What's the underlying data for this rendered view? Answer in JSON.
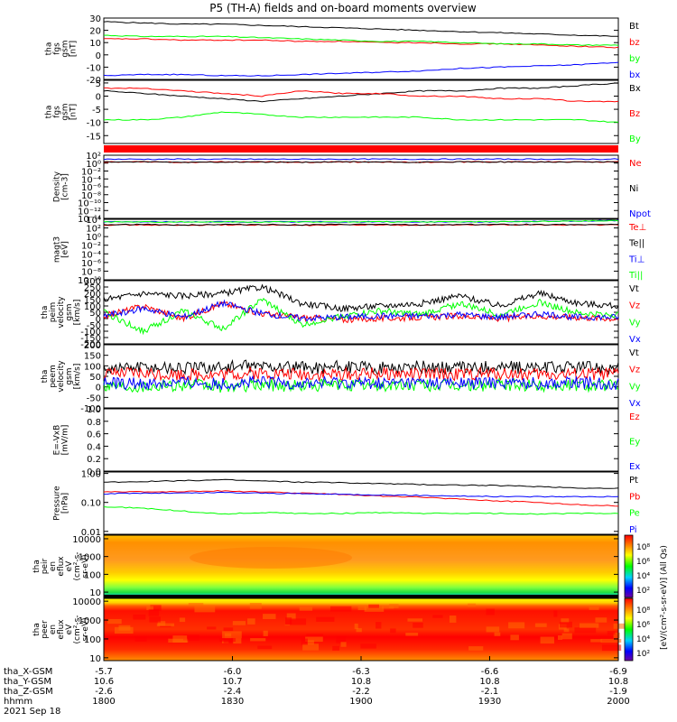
{
  "title": "P5 (TH-A) fields and on-board moments overview",
  "colors": {
    "black": "#000000",
    "red": "#ff0000",
    "green": "#00ff00",
    "blue": "#0000ff"
  },
  "chart_data": {
    "type": "line",
    "x_range": [
      "1800",
      "2000"
    ],
    "panels": [
      {
        "ylabel": [
          "tha",
          "fgs",
          "gsm",
          "[nT]"
        ],
        "ylim": [
          -20,
          30
        ],
        "ticks": [
          "30",
          "20",
          "10",
          "0",
          "-10",
          "-20"
        ],
        "tick_values": [
          30,
          20,
          10,
          0,
          -10,
          -20
        ],
        "legend": [
          {
            "label": "Bt",
            "color": "#000000"
          },
          {
            "label": "bz",
            "color": "#ff0000"
          },
          {
            "label": "by",
            "color": "#00ff00"
          },
          {
            "label": "bx",
            "color": "#0000ff"
          }
        ],
        "series": [
          {
            "color": "#000000",
            "values": [
              27,
              26,
              25,
              25,
              24,
              23,
              22,
              21,
              20,
              19,
              18,
              17,
              16,
              15
            ]
          },
          {
            "color": "#ff0000",
            "values": [
              13,
              13,
              12,
              12,
              12,
              11,
              11,
              10,
              10,
              9,
              9,
              8,
              7,
              6
            ]
          },
          {
            "color": "#00ff00",
            "values": [
              16,
              15,
              15,
              15,
              14,
              13,
              12,
              11,
              11,
              10,
              9,
              9,
              8,
              8
            ]
          },
          {
            "color": "#0000ff",
            "values": [
              -17,
              -16,
              -16,
              -17,
              -17,
              -16,
              -15,
              -14,
              -13,
              -11,
              -10,
              -9,
              -8,
              -6
            ]
          }
        ]
      },
      {
        "ylabel": [
          "tha",
          "fgs",
          "gsm",
          "[nT]"
        ],
        "ylim": [
          -18,
          6
        ],
        "ticks": [
          "5",
          "0",
          "-5",
          "-10",
          "-15"
        ],
        "tick_values": [
          5,
          0,
          -5,
          -10,
          -15
        ],
        "legend": [
          {
            "label": "Bx",
            "color": "#000000"
          },
          {
            "label": "Bz",
            "color": "#ff0000"
          },
          {
            "label": "By",
            "color": "#00ff00"
          }
        ],
        "series": [
          {
            "color": "#000000",
            "values": [
              2,
              1,
              0,
              -1,
              -2,
              -1,
              0,
              1,
              2,
              2,
              3,
              3,
              4,
              5
            ]
          },
          {
            "color": "#ff0000",
            "values": [
              3,
              3,
              2,
              1,
              0,
              2,
              1,
              1,
              0,
              0,
              -1,
              -1,
              -2,
              -2
            ]
          },
          {
            "color": "#00ff00",
            "values": [
              -9,
              -9,
              -8,
              -6,
              -7,
              -8,
              -8,
              -8,
              -8,
              -9,
              -9,
              -9,
              -9,
              -10
            ]
          }
        ]
      },
      {
        "ylabel": [
          "Density",
          "[cm-3]"
        ],
        "ylim": [
          -14,
          2
        ],
        "scale": "log",
        "ticks": [
          "10²",
          "10⁰",
          "10⁻²",
          "10⁻⁴",
          "10⁻⁶",
          "10⁻⁸",
          "10⁻¹⁰",
          "10⁻¹²",
          "10⁻¹⁴"
        ],
        "tick_values": [
          2,
          0,
          -2,
          -4,
          -6,
          -8,
          -10,
          -12,
          -14
        ],
        "legend": [
          {
            "label": "Ne",
            "color": "#ff0000"
          },
          {
            "label": "Ni",
            "color": "#000000"
          },
          {
            "label": "Npot",
            "color": "#0000ff"
          }
        ],
        "series": [
          {
            "color": "#ff0000",
            "values": [
              0.3,
              0.3,
              0.2,
              0.3,
              0.3,
              0.2,
              0.3,
              0.3,
              0.2,
              0.3,
              0.3,
              0.3,
              0.3,
              0.3
            ]
          },
          {
            "color": "#000000",
            "values": [
              0.3,
              0.3,
              0.2,
              0.3,
              0.3,
              0.2,
              0.3,
              0.3,
              0.2,
              0.3,
              0.3,
              0.3,
              0.3,
              0.3
            ]
          },
          {
            "color": "#0000ff",
            "values": [
              1.0,
              1.0,
              1.0,
              1.0,
              1.0,
              1.0,
              1.0,
              1.0,
              1.0,
              1.0,
              1.0,
              1.0,
              1.0,
              1.0
            ]
          }
        ]
      },
      {
        "ylabel": [
          "magt3",
          "[eV]"
        ],
        "ylim": [
          -10,
          4
        ],
        "scale": "log",
        "ticks": [
          "10⁴",
          "10²",
          "10⁰",
          "10⁻²",
          "10⁻⁴",
          "10⁻⁶",
          "10⁻⁸",
          "10⁻¹⁰"
        ],
        "tick_values": [
          4,
          2,
          0,
          -2,
          -4,
          -6,
          -8,
          -10
        ],
        "legend": [
          {
            "label": "Te⊥",
            "color": "#ff0000"
          },
          {
            "label": "Te||",
            "color": "#000000"
          },
          {
            "label": "Ti⊥",
            "color": "#0000ff"
          },
          {
            "label": "Ti||",
            "color": "#00ff00"
          }
        ],
        "series": [
          {
            "color": "#ff0000",
            "values": [
              2.7,
              2.7,
              2.6,
              2.7,
              2.7,
              2.6,
              2.7,
              2.7,
              2.6,
              2.7,
              2.7,
              2.7,
              2.7,
              2.7
            ]
          },
          {
            "color": "#000000",
            "values": [
              2.8,
              2.8,
              2.7,
              2.8,
              2.8,
              2.7,
              2.8,
              2.8,
              2.7,
              2.8,
              2.8,
              2.8,
              2.8,
              2.8
            ]
          },
          {
            "color": "#0000ff",
            "values": [
              3.4,
              3.4,
              3.4,
              3.4,
              3.4,
              3.4,
              3.4,
              3.4,
              3.4,
              3.4,
              3.4,
              3.5,
              3.6,
              3.7
            ]
          },
          {
            "color": "#00ff00",
            "values": [
              3.4,
              3.4,
              3.4,
              3.4,
              3.4,
              3.4,
              3.4,
              3.4,
              3.4,
              3.4,
              3.4,
              3.5,
              3.6,
              3.7
            ]
          }
        ]
      },
      {
        "ylabel": [
          "tha",
          "peim",
          "velocity",
          "gsm",
          "[km/s]"
        ],
        "ylim": [
          -200,
          300
        ],
        "ticks": [
          "300",
          "250",
          "200",
          "150",
          "100",
          "50",
          "0",
          "-50",
          "-100",
          "-150",
          "-200"
        ],
        "tick_values": [
          300,
          250,
          200,
          150,
          100,
          50,
          0,
          -50,
          -100,
          -150,
          -200
        ],
        "legend": [
          {
            "label": "Vt",
            "color": "#000000"
          },
          {
            "label": "Vz",
            "color": "#ff0000"
          },
          {
            "label": "Vy",
            "color": "#00ff00"
          },
          {
            "label": "Vx",
            "color": "#0000ff"
          }
        ],
        "series": [
          {
            "color": "#000000",
            "values": [
              150,
              200,
              180,
              200,
              250,
              120,
              80,
              100,
              120,
              180,
              100,
              200,
              120,
              100
            ]
          },
          {
            "color": "#ff0000",
            "values": [
              20,
              100,
              0,
              120,
              40,
              10,
              -10,
              0,
              10,
              20,
              0,
              20,
              10,
              0
            ]
          },
          {
            "color": "#00ff00",
            "values": [
              50,
              -100,
              60,
              -80,
              150,
              -50,
              20,
              60,
              30,
              120,
              30,
              130,
              40,
              30
            ]
          },
          {
            "color": "#0000ff",
            "values": [
              20,
              80,
              10,
              120,
              40,
              0,
              10,
              20,
              20,
              30,
              10,
              40,
              10,
              10
            ]
          }
        ]
      },
      {
        "ylabel": [
          "tha",
          "peem",
          "velocity",
          "gsm",
          "[km/s]"
        ],
        "ylim": [
          -100,
          200
        ],
        "ticks": [
          "200",
          "150",
          "100",
          "50",
          "0",
          "-50",
          "-100"
        ],
        "tick_values": [
          200,
          150,
          100,
          50,
          0,
          -50,
          -100
        ],
        "legend": [
          {
            "label": "Vt",
            "color": "#000000"
          },
          {
            "label": "Vz",
            "color": "#ff0000"
          },
          {
            "label": "Vy",
            "color": "#00ff00"
          },
          {
            "label": "Vx",
            "color": "#0000ff"
          }
        ],
        "series": [
          {
            "color": "#000000",
            "values": [
              90,
              95,
              90,
              95,
              100,
              90,
              95,
              90,
              95,
              90,
              95,
              90,
              95,
              90
            ]
          },
          {
            "color": "#ff0000",
            "values": [
              60,
              65,
              60,
              60,
              65,
              60,
              60,
              65,
              60,
              60,
              65,
              60,
              60,
              60
            ]
          },
          {
            "color": "#00ff00",
            "values": [
              10,
              5,
              10,
              0,
              10,
              5,
              10,
              5,
              10,
              5,
              10,
              5,
              10,
              5
            ]
          },
          {
            "color": "#0000ff",
            "values": [
              20,
              15,
              20,
              15,
              20,
              15,
              20,
              15,
              20,
              15,
              20,
              15,
              20,
              15
            ]
          }
        ]
      },
      {
        "ylabel": [
          "E=-VxB",
          "[mV/m]"
        ],
        "ylim": [
          0,
          1
        ],
        "ticks": [
          "1.0",
          "0.8",
          "0.6",
          "0.4",
          "0.2",
          "0.0"
        ],
        "tick_values": [
          1.0,
          0.8,
          0.6,
          0.4,
          0.2,
          0.0
        ],
        "legend": [
          {
            "label": "Ez",
            "color": "#ff0000"
          },
          {
            "label": "Ey",
            "color": "#00ff00"
          },
          {
            "label": "Ex",
            "color": "#0000ff"
          }
        ],
        "series": []
      },
      {
        "ylabel": [
          "Pressure",
          "[nPa]"
        ],
        "ylim": [
          -2.1,
          0.05
        ],
        "scale": "log",
        "ticks": [
          "1.00",
          "0.10",
          "0.01"
        ],
        "tick_values": [
          0,
          -1,
          -2
        ],
        "legend": [
          {
            "label": "Pt",
            "color": "#000000"
          },
          {
            "label": "Pb",
            "color": "#ff0000"
          },
          {
            "label": "Pe",
            "color": "#00ff00"
          },
          {
            "label": "Pi",
            "color": "#0000ff"
          }
        ],
        "series": [
          {
            "color": "#000000",
            "values": [
              -0.3,
              -0.28,
              -0.25,
              -0.22,
              -0.26,
              -0.3,
              -0.32,
              -0.35,
              -0.38,
              -0.4,
              -0.42,
              -0.45,
              -0.5,
              -0.52
            ]
          },
          {
            "color": "#ff0000",
            "values": [
              -0.62,
              -0.64,
              -0.62,
              -0.6,
              -0.64,
              -0.68,
              -0.72,
              -0.78,
              -0.82,
              -0.88,
              -0.95,
              -1.0,
              -1.08,
              -1.12
            ]
          },
          {
            "color": "#00ff00",
            "values": [
              -1.15,
              -1.2,
              -1.3,
              -1.4,
              -1.35,
              -1.38,
              -1.38,
              -1.35,
              -1.38,
              -1.38,
              -1.38,
              -1.4,
              -1.38,
              -1.38
            ]
          },
          {
            "color": "#0000ff",
            "values": [
              -0.7,
              -0.68,
              -0.68,
              -0.66,
              -0.68,
              -0.7,
              -0.72,
              -0.74,
              -0.76,
              -0.78,
              -0.8,
              -0.8,
              -0.8,
              -0.8
            ]
          }
        ]
      },
      {
        "ylabel": [
          "tha",
          "peir",
          "en",
          "eflux",
          "eV",
          "(cm²-s-",
          "sr-eV)"
        ],
        "ylim": [
          0.7,
          4.2
        ],
        "scale": "log",
        "ticks": [
          "10000",
          "1000",
          "100",
          "10"
        ],
        "tick_values": [
          4,
          3,
          2,
          1
        ],
        "spectrogram": true
      },
      {
        "ylabel": [
          "tha",
          "peer",
          "en",
          "eflux",
          "eV",
          "(cm²-s-",
          "sr-eV)"
        ],
        "ylim": [
          0.85,
          4.15
        ],
        "scale": "log",
        "ticks": [
          "10000",
          "1000",
          "100",
          "10"
        ],
        "tick_values": [
          4,
          3,
          2,
          1
        ],
        "spectrogram": true
      }
    ],
    "colorbar": {
      "label": "[eV/(cm²-s-sr-eV)] (All Qs)",
      "ticks": [
        "10⁸",
        "10⁶",
        "10⁴",
        "10²",
        "10⁸",
        "10⁶",
        "10⁴",
        "10²"
      ]
    },
    "x_axis": {
      "row_labels": [
        "tha_X-GSM",
        "tha_Y-GSM",
        "tha_Z-GSM",
        "hhmm",
        "2021 Sep 18"
      ],
      "ticks": [
        {
          "position": 0,
          "values": [
            "-5.7",
            "10.6",
            "-2.6",
            "1800"
          ]
        },
        {
          "position": 0.25,
          "values": [
            "-6.0",
            "10.7",
            "-2.4",
            "1830"
          ]
        },
        {
          "position": 0.5,
          "values": [
            "-6.3",
            "10.8",
            "-2.2",
            "1900"
          ]
        },
        {
          "position": 0.75,
          "values": [
            "-6.6",
            "10.8",
            "-2.1",
            "1930"
          ]
        },
        {
          "position": 1,
          "values": [
            "-6.9",
            "10.8",
            "-1.9",
            "2000"
          ]
        }
      ]
    }
  }
}
